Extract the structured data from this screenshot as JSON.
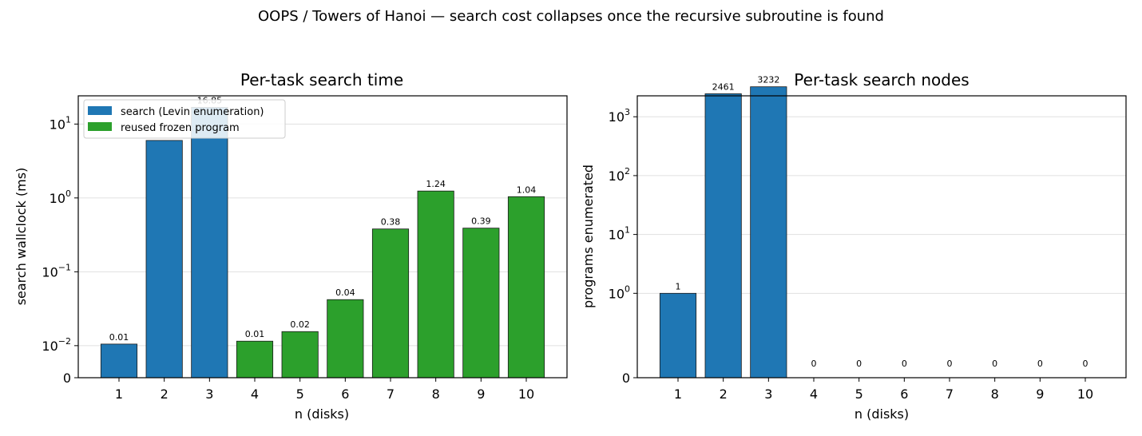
{
  "suptitle": "OOPS / Towers of Hanoi — search cost collapses once the recursive subroutine is found",
  "colors": {
    "search": "#1f77b4",
    "reused": "#2ca02c"
  },
  "chart_data": [
    {
      "type": "bar",
      "title": "Per-task search time",
      "xlabel": "n (disks)",
      "ylabel": "search wallclock (ms)",
      "yscale": "symlog",
      "ylim": [
        0,
        23
      ],
      "yticks": [
        {
          "base": "0",
          "exp": ""
        },
        {
          "base": "10",
          "exp": "−2"
        },
        {
          "base": "10",
          "exp": "−1"
        },
        {
          "base": "10",
          "exp": "0"
        },
        {
          "base": "10",
          "exp": "1"
        }
      ],
      "categories": [
        "1",
        "2",
        "3",
        "4",
        "5",
        "6",
        "7",
        "8",
        "9",
        "10"
      ],
      "values": [
        0.0105,
        6.0,
        16.85,
        0.0115,
        0.0155,
        0.042,
        0.38,
        1.24,
        0.39,
        1.04
      ],
      "kinds": [
        "search",
        "search",
        "search",
        "reused",
        "reused",
        "reused",
        "reused",
        "reused",
        "reused",
        "reused"
      ],
      "data_labels": [
        "0.01",
        "",
        "16.85",
        "0.01",
        "0.02",
        "0.04",
        "0.38",
        "1.24",
        "0.39",
        "1.04"
      ],
      "legend": {
        "position": "upper left",
        "entries": [
          {
            "label": "search (Levin enumeration)",
            "kind": "search"
          },
          {
            "label": "reused frozen program",
            "kind": "reused"
          }
        ]
      },
      "grid": "y"
    },
    {
      "type": "bar",
      "title": "Per-task search nodes",
      "xlabel": "n (disks)",
      "ylabel": "programs enumerated",
      "yscale": "symlog",
      "ylim": [
        0,
        5200
      ],
      "yticks": [
        {
          "base": "0",
          "exp": ""
        },
        {
          "base": "10",
          "exp": "0"
        },
        {
          "base": "10",
          "exp": "1"
        },
        {
          "base": "10",
          "exp": "2"
        },
        {
          "base": "10",
          "exp": "3"
        }
      ],
      "categories": [
        "1",
        "2",
        "3",
        "4",
        "5",
        "6",
        "7",
        "8",
        "9",
        "10"
      ],
      "values": [
        1,
        2461,
        3232,
        0,
        0,
        0,
        0,
        0,
        0,
        0
      ],
      "kinds": [
        "search",
        "search",
        "search",
        "search",
        "search",
        "search",
        "search",
        "search",
        "search",
        "search"
      ],
      "data_labels": [
        "1",
        "2461",
        "3232",
        "0",
        "0",
        "0",
        "0",
        "0",
        "0",
        "0"
      ],
      "grid": "y"
    }
  ]
}
